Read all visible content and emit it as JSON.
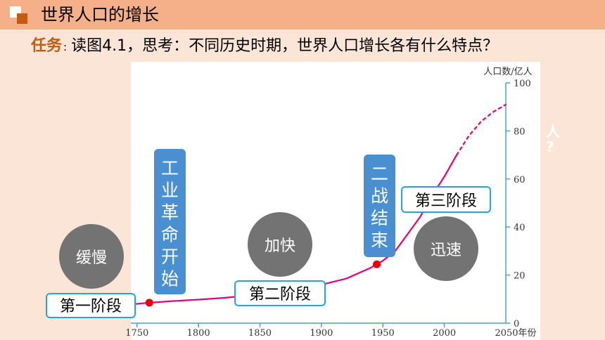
{
  "slide": {
    "title": "世界人口的增长",
    "task_label": "任务",
    "task_colon": ":",
    "task_text": "读图4.1，思考：不同历史时期，世界人口增长各有什么特点？",
    "behind_text_1": "人",
    "behind_text_2": "?"
  },
  "chart_data": {
    "type": "line",
    "ylabel": "人口数/亿人",
    "x_axis_end_label": "2050年份",
    "x_ticks": [
      1750,
      1800,
      1850,
      1900,
      1950,
      2000
    ],
    "y_ticks": [
      0,
      20,
      40,
      60,
      80,
      100
    ],
    "xlim": [
      1745,
      2050
    ],
    "ylim": [
      0,
      100
    ],
    "series": [
      {
        "values_x": [
          1745,
          1760,
          1780,
          1800,
          1820,
          1850,
          1870,
          1900,
          1920,
          1940,
          1950,
          1960,
          1970,
          1980,
          1990,
          2000,
          2010
        ],
        "values_y": [
          7.8,
          8.5,
          9.2,
          9.8,
          10.5,
          12,
          13,
          16,
          18.5,
          23,
          26,
          30,
          37,
          44,
          53,
          61,
          70
        ],
        "style": "solid"
      },
      {
        "values_x": [
          2010,
          2020,
          2030,
          2040,
          2050
        ],
        "values_y": [
          70,
          78,
          84,
          88,
          91
        ],
        "style": "dashed"
      }
    ],
    "markers": [
      {
        "x": 1760,
        "y": 8.5
      },
      {
        "x": 1945,
        "y": 24.5
      }
    ],
    "line_color": "#e6007e",
    "marker_color": "#e8000b"
  },
  "annotations": {
    "stage1": "第一阶段",
    "stage2": "第二阶段",
    "stage3": "第三阶段",
    "slow": "缓慢",
    "faster": "加快",
    "rapid": "迅速",
    "industrial_revolution": [
      "工",
      "业",
      "革",
      "命",
      "开",
      "始"
    ],
    "ww2_end": [
      "二",
      "战",
      "结",
      "束"
    ]
  }
}
